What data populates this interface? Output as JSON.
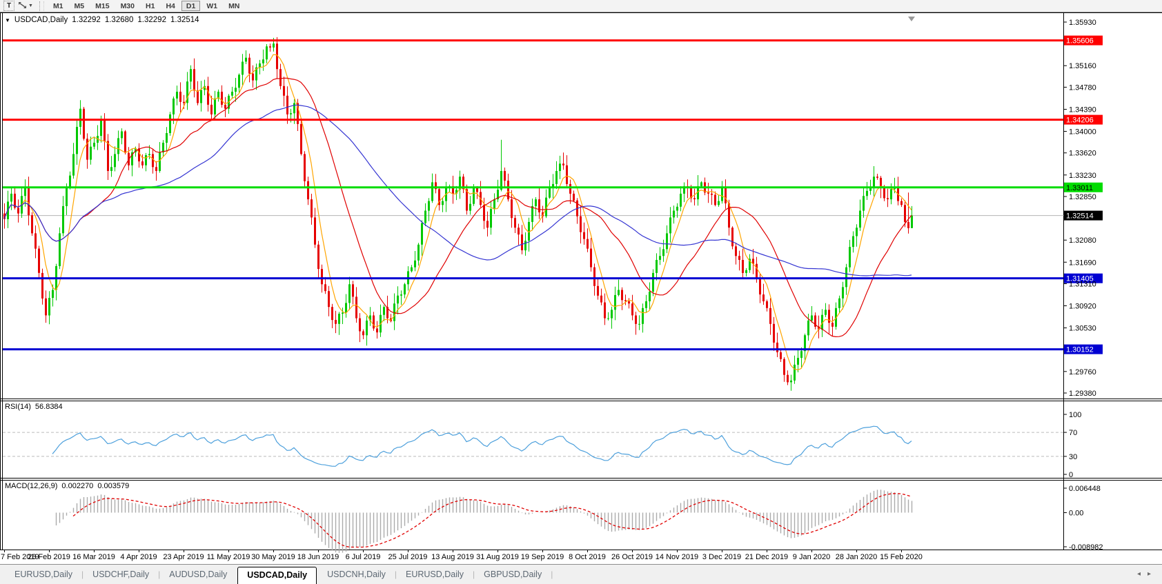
{
  "toolbar": {
    "text_tool_label": "T",
    "timeframes": [
      "M1",
      "M5",
      "M15",
      "M30",
      "H1",
      "H4",
      "D1",
      "W1",
      "MN"
    ],
    "active_timeframe": "D1"
  },
  "chart_header": {
    "collapse_caret": "▼",
    "symbol": "USDCAD,Daily",
    "open": "1.32292",
    "high": "1.32680",
    "low": "1.32292",
    "close": "1.32514"
  },
  "indicators": {
    "rsi": {
      "name": "RSI(14)",
      "value": "56.8384",
      "axis_ticks": [
        "100",
        "70",
        "30",
        "0"
      ],
      "level_lines": [
        70,
        30
      ],
      "line_color": "#4da0dc"
    },
    "macd": {
      "name": "MACD(12,26,9)",
      "value_main": "0.002270",
      "value_signal": "0.003579",
      "axis_ticks": [
        {
          "value": 0.006448,
          "label": "0.006448"
        },
        {
          "value": 0,
          "label": "0.00"
        },
        {
          "value": -0.008982,
          "label": "-0.008982"
        }
      ],
      "histogram_color": "#ababab",
      "signal_color": "#e00000"
    }
  },
  "price_axis": {
    "ticks": [
      "1.35930",
      "1.35160",
      "1.34780",
      "1.34390",
      "1.34000",
      "1.33620",
      "1.33230",
      "1.32850",
      "1.32080",
      "1.31690",
      "1.31310",
      "1.30920",
      "1.30530",
      "1.29760",
      "1.29380"
    ]
  },
  "levels": [
    {
      "price": 1.35606,
      "label": "1.35606",
      "color": "#ff0000",
      "label_text_color": "#ffffff",
      "kind": "resistance"
    },
    {
      "price": 1.34206,
      "label": "1.34206",
      "color": "#ff0000",
      "label_text_color": "#ffffff",
      "kind": "resistance"
    },
    {
      "price": 1.33011,
      "label": "1.33011",
      "color": "#00dc00",
      "label_text_color": "#000000",
      "kind": "pivot"
    },
    {
      "price": 1.31405,
      "label": "1.31405",
      "color": "#0000d2",
      "label_text_color": "#ffffff",
      "kind": "support"
    },
    {
      "price": 1.30152,
      "label": "1.30152",
      "color": "#0000d2",
      "label_text_color": "#ffffff",
      "kind": "support"
    }
  ],
  "bid_line": {
    "price": 1.32514,
    "label": "1.32514",
    "line_color": "#b4b4b4",
    "label_bg": "#000000",
    "label_text_color": "#ffffff"
  },
  "chart_data": {
    "type": "candlestick",
    "symbol": "USDCAD",
    "timeframe": "Daily",
    "title": "USDCAD,Daily",
    "y_range": [
      1.2938,
      1.3593
    ],
    "up_color": "#00c800",
    "down_color": "#e60000",
    "current_bar": {
      "open": 1.32292,
      "high": 1.3268,
      "low": 1.32292,
      "close": 1.32514
    },
    "moving_averages": [
      {
        "period": 6,
        "color": "#ffa500"
      },
      {
        "period": 22,
        "color": "#e00000"
      },
      {
        "period": 52,
        "color": "#3434d2"
      }
    ],
    "x_labels": [
      [
        0,
        "7 Feb 2019"
      ],
      [
        13,
        "26 Feb 2019"
      ],
      [
        26,
        "16 Mar 2019"
      ],
      [
        39,
        "4 Apr 2019"
      ],
      [
        52,
        "23 Apr 2019"
      ],
      [
        65,
        "11 May 2019"
      ],
      [
        78,
        "30 May 2019"
      ],
      [
        91,
        "18 Jun 2019"
      ],
      [
        104,
        "6 Jul 2019"
      ],
      [
        117,
        "25 Jul 2019"
      ],
      [
        130,
        "13 Aug 2019"
      ],
      [
        143,
        "31 Aug 2019"
      ],
      [
        156,
        "19 Sep 2019"
      ],
      [
        169,
        "8 Oct 2019"
      ],
      [
        182,
        "26 Oct 2019"
      ],
      [
        195,
        "14 Nov 2019"
      ],
      [
        208,
        "3 Dec 2019"
      ],
      [
        221,
        "21 Dec 2019"
      ],
      [
        234,
        "9 Jan 2020"
      ],
      [
        247,
        "28 Jan 2020"
      ],
      [
        260,
        "15 Feb 2020"
      ]
    ],
    "closes": [
      1.3245,
      1.3276,
      1.329,
      1.3265,
      1.3255,
      1.3286,
      1.33,
      1.3252,
      1.322,
      1.3193,
      1.315,
      1.3105,
      1.3075,
      1.3106,
      1.312,
      1.3162,
      1.322,
      1.3268,
      1.33,
      1.3322,
      1.336,
      1.3408,
      1.344,
      1.3387,
      1.335,
      1.3373,
      1.338,
      1.3392,
      1.342,
      1.3383,
      1.333,
      1.3337,
      1.336,
      1.3388,
      1.34,
      1.3362,
      1.334,
      1.3363,
      1.337,
      1.3347,
      1.334,
      1.3358,
      1.336,
      1.3337,
      1.333,
      1.3363,
      1.338,
      1.3397,
      1.343,
      1.3458,
      1.347,
      1.3452,
      1.345,
      1.3488,
      1.351,
      1.3472,
      1.345,
      1.3473,
      1.348,
      1.3447,
      1.343,
      1.3458,
      1.347,
      1.3447,
      1.344,
      1.3463,
      1.347,
      1.3477,
      1.35,
      1.3523,
      1.353,
      1.3502,
      1.349,
      1.3513,
      1.352,
      1.3527,
      1.355,
      1.3548,
      1.3555,
      1.351,
      1.348,
      1.3463,
      1.343,
      1.3432,
      1.345,
      1.3413,
      1.336,
      1.3312,
      1.328,
      1.3248,
      1.32,
      1.3157,
      1.313,
      1.3118,
      1.309,
      1.3067,
      1.306,
      1.3078,
      1.308,
      1.3097,
      1.313,
      1.3108,
      1.307,
      1.3047,
      1.304,
      1.3066,
      1.3075,
      1.3052,
      1.3045,
      1.3076,
      1.309,
      1.307,
      1.3065,
      1.3096,
      1.311,
      1.3112,
      1.313,
      1.3153,
      1.316,
      1.3172,
      1.32,
      1.3238,
      1.326,
      1.3277,
      1.331,
      1.3298,
      1.327,
      1.3277,
      1.33,
      1.3303,
      1.329,
      1.3297,
      1.332,
      1.3298,
      1.326,
      1.3272,
      1.33,
      1.3293,
      1.327,
      1.3242,
      1.323,
      1.3263,
      1.328,
      1.3297,
      1.333,
      1.3313,
      1.328,
      1.3247,
      1.323,
      1.3218,
      1.319,
      1.3207,
      1.324,
      1.3268,
      1.328,
      1.3257,
      1.325,
      1.3283,
      1.33,
      1.3307,
      1.333,
      1.3343,
      1.334,
      1.3307,
      1.329,
      1.3278,
      1.325,
      1.3222,
      1.321,
      1.3193,
      1.316,
      1.3127,
      1.311,
      1.3098,
      1.307,
      1.307,
      1.3085,
      1.3111,
      1.312,
      1.3102,
      1.31,
      1.3096,
      1.3075,
      1.306,
      1.306,
      1.3088,
      1.31,
      1.3117,
      1.315,
      1.3173,
      1.318,
      1.3192,
      1.322,
      1.3248,
      1.326,
      1.3267,
      1.329,
      1.3303,
      1.33,
      1.3282,
      1.328,
      1.3303,
      1.331,
      1.3292,
      1.329,
      1.3288,
      1.327,
      1.3277,
      1.33,
      1.3273,
      1.323,
      1.3197,
      1.318,
      1.3173,
      1.315,
      1.3155,
      1.3175,
      1.3166,
      1.314,
      1.3112,
      1.31,
      1.3088,
      1.306,
      1.3027,
      1.301,
      1.2998,
      1.297,
      1.2957,
      1.296,
      1.2988,
      1.3,
      1.3012,
      1.304,
      1.3066,
      1.3075,
      1.3055,
      1.305,
      1.3076,
      1.3085,
      1.3062,
      1.3055,
      1.3088,
      1.3105,
      1.3125,
      1.316,
      1.3196,
      1.3215,
      1.323,
      1.326,
      1.3286,
      1.3295,
      1.33,
      1.332,
      1.3318,
      1.33,
      1.3282,
      1.328,
      1.3298,
      1.33,
      1.3277,
      1.327,
      1.324,
      1.3229,
      1.3251
    ],
    "high_overrides": {
      "22": 1.3455,
      "78": 1.3561,
      "144": 1.3385,
      "252": 1.3338,
      "262": 1.3292
    },
    "low_overrides": {
      "12": 1.3062,
      "104": 1.3033,
      "108": 1.3036,
      "227": 1.2952,
      "228": 1.295
    }
  },
  "tabs": [
    {
      "label": "EURUSD,Daily",
      "active": false
    },
    {
      "label": "USDCHF,Daily",
      "active": false
    },
    {
      "label": "AUDUSD,Daily",
      "active": false
    },
    {
      "label": "USDCAD,Daily",
      "active": true
    },
    {
      "label": "USDCNH,Daily",
      "active": false
    },
    {
      "label": "EURUSD,Daily",
      "active": false
    },
    {
      "label": "GBPUSD,Daily",
      "active": false
    }
  ],
  "tab_nav": {
    "left": "◂",
    "right": "▸"
  },
  "tab_separator": "|"
}
